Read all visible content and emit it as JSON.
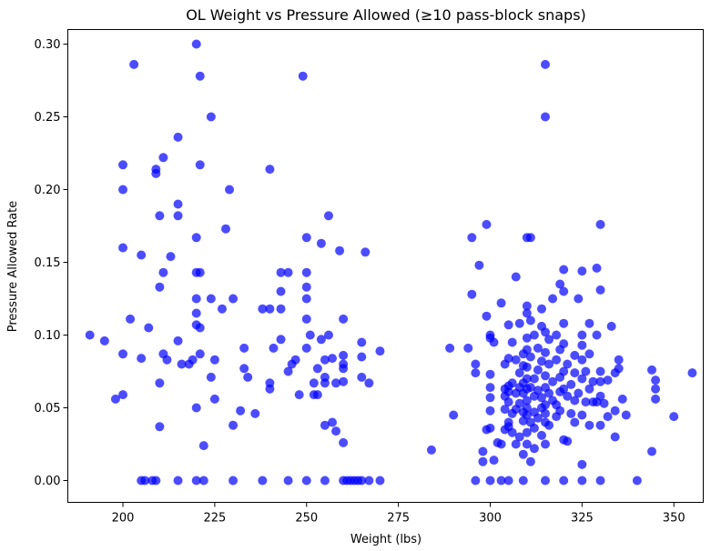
{
  "chart_data": {
    "type": "scatter",
    "title": "OL Weight vs Pressure Allowed (≥10 pass-block snaps)",
    "xlabel": "Weight (lbs)",
    "ylabel": "Pressure Allowed Rate",
    "xlim": [
      185,
      358
    ],
    "ylim": [
      -0.015,
      0.31
    ],
    "xticks": [
      200,
      225,
      250,
      275,
      300,
      325,
      350
    ],
    "xtick_labels": [
      "200",
      "225",
      "250",
      "275",
      "300",
      "325",
      "350"
    ],
    "yticks": [
      0.0,
      0.05,
      0.1,
      0.15,
      0.2,
      0.25,
      0.3
    ],
    "ytick_labels": [
      "0.00",
      "0.05",
      "0.10",
      "0.15",
      "0.20",
      "0.25",
      "0.30"
    ],
    "grid": false,
    "marker_color": "#0000ff",
    "marker_opacity": 0.7,
    "points": [
      [
        191,
        0.1
      ],
      [
        195,
        0.096
      ],
      [
        198,
        0.056
      ],
      [
        200,
        0.059
      ],
      [
        200,
        0.087
      ],
      [
        200,
        0.16
      ],
      [
        200,
        0.2
      ],
      [
        200,
        0.217
      ],
      [
        202,
        0.111
      ],
      [
        203,
        0.286
      ],
      [
        205,
        0.155
      ],
      [
        205,
        0.084
      ],
      [
        205,
        0.0
      ],
      [
        206,
        0.0
      ],
      [
        207,
        0.105
      ],
      [
        208,
        0.0
      ],
      [
        209,
        0.211
      ],
      [
        209,
        0.214
      ],
      [
        209,
        0.0
      ],
      [
        210,
        0.133
      ],
      [
        210,
        0.182
      ],
      [
        210,
        0.067
      ],
      [
        210,
        0.037
      ],
      [
        211,
        0.087
      ],
      [
        211,
        0.143
      ],
      [
        211,
        0.222
      ],
      [
        212,
        0.083
      ],
      [
        213,
        0.154
      ],
      [
        215,
        0.236
      ],
      [
        215,
        0.19
      ],
      [
        215,
        0.182
      ],
      [
        215,
        0.096
      ],
      [
        215,
        0.0
      ],
      [
        216,
        0.08
      ],
      [
        218,
        0.08
      ],
      [
        219,
        0.083
      ],
      [
        220,
        0.3
      ],
      [
        220,
        0.167
      ],
      [
        220,
        0.143
      ],
      [
        220,
        0.125
      ],
      [
        220,
        0.115
      ],
      [
        220,
        0.107
      ],
      [
        220,
        0.05
      ],
      [
        220,
        0.0
      ],
      [
        221,
        0.278
      ],
      [
        221,
        0.217
      ],
      [
        221,
        0.143
      ],
      [
        221,
        0.105
      ],
      [
        221,
        0.087
      ],
      [
        222,
        0.024
      ],
      [
        222,
        0.0
      ],
      [
        224,
        0.25
      ],
      [
        224,
        0.125
      ],
      [
        224,
        0.071
      ],
      [
        225,
        0.083
      ],
      [
        225,
        0.056
      ],
      [
        227,
        0.118
      ],
      [
        228,
        0.173
      ],
      [
        229,
        0.2
      ],
      [
        230,
        0.125
      ],
      [
        230,
        0.038
      ],
      [
        230,
        0.0
      ],
      [
        232,
        0.048
      ],
      [
        233,
        0.091
      ],
      [
        233,
        0.077
      ],
      [
        234,
        0.071
      ],
      [
        236,
        0.046
      ],
      [
        238,
        0.118
      ],
      [
        238,
        0.0
      ],
      [
        240,
        0.214
      ],
      [
        240,
        0.118
      ],
      [
        240,
        0.063
      ],
      [
        240,
        0.067
      ],
      [
        241,
        0.091
      ],
      [
        243,
        0.118
      ],
      [
        243,
        0.143
      ],
      [
        243,
        0.13
      ],
      [
        243,
        0.097
      ],
      [
        245,
        0.143
      ],
      [
        245,
        0.075
      ],
      [
        245,
        0.0
      ],
      [
        246,
        0.08
      ],
      [
        247,
        0.083
      ],
      [
        248,
        0.059
      ],
      [
        249,
        0.278
      ],
      [
        250,
        0.167
      ],
      [
        250,
        0.143
      ],
      [
        250,
        0.133
      ],
      [
        250,
        0.125
      ],
      [
        250,
        0.111
      ],
      [
        250,
        0.091
      ],
      [
        250,
        0.0
      ],
      [
        251,
        0.1
      ],
      [
        252,
        0.067
      ],
      [
        252,
        0.059
      ],
      [
        253,
        0.059
      ],
      [
        253,
        0.077
      ],
      [
        254,
        0.163
      ],
      [
        254,
        0.097
      ],
      [
        255,
        0.083
      ],
      [
        255,
        0.071
      ],
      [
        255,
        0.067
      ],
      [
        255,
        0.038
      ],
      [
        255,
        0.0
      ],
      [
        256,
        0.182
      ],
      [
        256,
        0.1
      ],
      [
        257,
        0.084
      ],
      [
        257,
        0.04
      ],
      [
        258,
        0.067
      ],
      [
        258,
        0.034
      ],
      [
        259,
        0.158
      ],
      [
        260,
        0.111
      ],
      [
        260,
        0.086
      ],
      [
        260,
        0.08
      ],
      [
        260,
        0.077
      ],
      [
        260,
        0.068
      ],
      [
        260,
        0.026
      ],
      [
        260,
        0.0
      ],
      [
        261,
        0.0
      ],
      [
        262,
        0.0
      ],
      [
        263,
        0.0
      ],
      [
        264,
        0.0
      ],
      [
        265,
        0.095
      ],
      [
        265,
        0.085
      ],
      [
        265,
        0.071
      ],
      [
        265,
        0.0
      ],
      [
        266,
        0.157
      ],
      [
        267,
        0.067
      ],
      [
        267,
        0.0
      ],
      [
        270,
        0.089
      ],
      [
        270,
        0.0
      ],
      [
        284,
        0.021
      ],
      [
        289,
        0.091
      ],
      [
        290,
        0.045
      ],
      [
        294,
        0.091
      ],
      [
        295,
        0.167
      ],
      [
        295,
        0.128
      ],
      [
        296,
        0.0
      ],
      [
        296,
        0.08
      ],
      [
        296,
        0.074
      ],
      [
        297,
        0.148
      ],
      [
        298,
        0.02
      ],
      [
        298,
        0.013
      ],
      [
        299,
        0.176
      ],
      [
        299,
        0.113
      ],
      [
        299,
        0.035
      ],
      [
        300,
        0.1
      ],
      [
        300,
        0.098
      ],
      [
        300,
        0.073
      ],
      [
        300,
        0.064
      ],
      [
        300,
        0.057
      ],
      [
        300,
        0.048
      ],
      [
        300,
        0.036
      ],
      [
        300,
        0.0
      ],
      [
        301,
        0.095
      ],
      [
        301,
        0.014
      ],
      [
        302,
        0.026
      ],
      [
        303,
        0.025
      ],
      [
        303,
        0.122
      ],
      [
        303,
        0.0
      ],
      [
        304,
        0.08
      ],
      [
        304,
        0.063
      ],
      [
        304,
        0.058
      ],
      [
        304,
        0.049
      ],
      [
        304,
        0.035
      ],
      [
        305,
        0.107
      ],
      [
        305,
        0.084
      ],
      [
        305,
        0.065
      ],
      [
        305,
        0.061
      ],
      [
        305,
        0.054
      ],
      [
        305,
        0.04
      ],
      [
        305,
        0.037
      ],
      [
        305,
        0.0
      ],
      [
        306,
        0.095
      ],
      [
        306,
        0.067
      ],
      [
        306,
        0.046
      ],
      [
        306,
        0.033
      ],
      [
        307,
        0.14
      ],
      [
        307,
        0.083
      ],
      [
        307,
        0.06
      ],
      [
        307,
        0.049
      ],
      [
        307,
        0.025
      ],
      [
        308,
        0.108
      ],
      [
        308,
        0.074
      ],
      [
        308,
        0.064
      ],
      [
        308,
        0.053
      ],
      [
        308,
        0.03
      ],
      [
        309,
        0.087
      ],
      [
        309,
        0.079
      ],
      [
        309,
        0.067
      ],
      [
        309,
        0.06
      ],
      [
        309,
        0.047
      ],
      [
        309,
        0.041
      ],
      [
        309,
        0.018
      ],
      [
        309,
        0.0
      ],
      [
        310,
        0.167
      ],
      [
        310,
        0.12
      ],
      [
        310,
        0.115
      ],
      [
        310,
        0.098
      ],
      [
        310,
        0.09
      ],
      [
        310,
        0.078
      ],
      [
        310,
        0.07
      ],
      [
        310,
        0.063
      ],
      [
        310,
        0.055
      ],
      [
        310,
        0.05
      ],
      [
        310,
        0.045
      ],
      [
        310,
        0.033
      ],
      [
        310,
        0.025
      ],
      [
        311,
        0.167
      ],
      [
        311,
        0.11
      ],
      [
        311,
        0.085
      ],
      [
        311,
        0.064
      ],
      [
        311,
        0.04
      ],
      [
        311,
        0.013
      ],
      [
        312,
        0.1
      ],
      [
        312,
        0.07
      ],
      [
        312,
        0.058
      ],
      [
        312,
        0.047
      ],
      [
        312,
        0.036
      ],
      [
        312,
        0.022
      ],
      [
        313,
        0.091
      ],
      [
        313,
        0.076
      ],
      [
        313,
        0.062
      ],
      [
        313,
        0.043
      ],
      [
        314,
        0.118
      ],
      [
        314,
        0.106
      ],
      [
        314,
        0.082
      ],
      [
        314,
        0.057
      ],
      [
        314,
        0.05
      ],
      [
        314,
        0.031
      ],
      [
        315,
        0.286
      ],
      [
        315,
        0.25
      ],
      [
        315,
        0.102
      ],
      [
        315,
        0.088
      ],
      [
        315,
        0.072
      ],
      [
        315,
        0.064
      ],
      [
        315,
        0.052
      ],
      [
        315,
        0.046
      ],
      [
        315,
        0.04
      ],
      [
        315,
        0.025
      ],
      [
        315,
        0.0
      ],
      [
        316,
        0.097
      ],
      [
        316,
        0.08
      ],
      [
        316,
        0.06
      ],
      [
        316,
        0.038
      ],
      [
        317,
        0.125
      ],
      [
        317,
        0.068
      ],
      [
        317,
        0.055
      ],
      [
        318,
        0.1
      ],
      [
        318,
        0.083
      ],
      [
        318,
        0.052
      ],
      [
        318,
        0.044
      ],
      [
        319,
        0.135
      ],
      [
        319,
        0.09
      ],
      [
        319,
        0.071
      ],
      [
        319,
        0.061
      ],
      [
        319,
        0.048
      ],
      [
        320,
        0.145
      ],
      [
        320,
        0.13
      ],
      [
        320,
        0.108
      ],
      [
        320,
        0.094
      ],
      [
        320,
        0.075
      ],
      [
        320,
        0.063
      ],
      [
        320,
        0.028
      ],
      [
        320,
        0.0
      ],
      [
        321,
        0.08
      ],
      [
        321,
        0.058
      ],
      [
        321,
        0.027
      ],
      [
        322,
        0.066
      ],
      [
        322,
        0.046
      ],
      [
        323,
        0.086
      ],
      [
        323,
        0.074
      ],
      [
        323,
        0.055
      ],
      [
        323,
        0.04
      ],
      [
        324,
        0.125
      ],
      [
        324,
        0.06
      ],
      [
        325,
        0.144
      ],
      [
        325,
        0.1
      ],
      [
        325,
        0.093
      ],
      [
        325,
        0.083
      ],
      [
        325,
        0.07
      ],
      [
        325,
        0.045
      ],
      [
        325,
        0.011
      ],
      [
        325,
        0.0
      ],
      [
        326,
        0.075
      ],
      [
        326,
        0.054
      ],
      [
        327,
        0.108
      ],
      [
        327,
        0.087
      ],
      [
        327,
        0.063
      ],
      [
        327,
        0.038
      ],
      [
        328,
        0.068
      ],
      [
        328,
        0.054
      ],
      [
        329,
        0.146
      ],
      [
        329,
        0.1
      ],
      [
        329,
        0.054
      ],
      [
        330,
        0.176
      ],
      [
        330,
        0.131
      ],
      [
        330,
        0.075
      ],
      [
        330,
        0.068
      ],
      [
        330,
        0.058
      ],
      [
        330,
        0.038
      ],
      [
        330,
        0.0
      ],
      [
        331,
        0.053
      ],
      [
        332,
        0.069
      ],
      [
        332,
        0.044
      ],
      [
        333,
        0.106
      ],
      [
        334,
        0.074
      ],
      [
        334,
        0.048
      ],
      [
        334,
        0.03
      ],
      [
        335,
        0.083
      ],
      [
        335,
        0.077
      ],
      [
        336,
        0.056
      ],
      [
        337,
        0.045
      ],
      [
        340,
        0.0
      ],
      [
        344,
        0.076
      ],
      [
        344,
        0.02
      ],
      [
        345,
        0.069
      ],
      [
        345,
        0.063
      ],
      [
        345,
        0.056
      ],
      [
        350,
        0.044
      ],
      [
        355,
        0.074
      ]
    ]
  }
}
